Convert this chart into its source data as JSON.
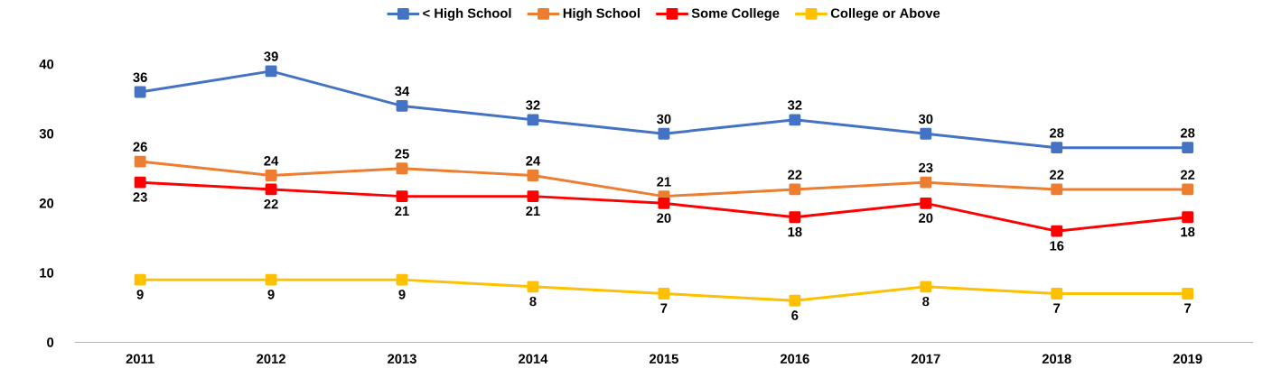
{
  "chart_data": {
    "type": "line",
    "categories": [
      "2011",
      "2012",
      "2013",
      "2014",
      "2015",
      "2016",
      "2017",
      "2018",
      "2019"
    ],
    "series": [
      {
        "name": "< High School",
        "color": "#4472c4",
        "values": [
          36,
          39,
          34,
          32,
          30,
          32,
          30,
          28,
          28
        ]
      },
      {
        "name": "High School",
        "color": "#ed7d31",
        "values": [
          26,
          24,
          25,
          24,
          21,
          22,
          23,
          22,
          22
        ]
      },
      {
        "name": "Some College",
        "color": "#ff0000",
        "values": [
          23,
          22,
          21,
          21,
          20,
          18,
          20,
          16,
          18
        ]
      },
      {
        "name": "College or Above",
        "color": "#ffc000",
        "values": [
          9,
          9,
          9,
          8,
          7,
          6,
          8,
          7,
          7
        ]
      }
    ],
    "ylim": [
      0,
      40
    ],
    "yticks": [
      0,
      10,
      20,
      30,
      40
    ],
    "legend": "top",
    "marker": "square",
    "line_style": "solid",
    "data_labels": true
  }
}
